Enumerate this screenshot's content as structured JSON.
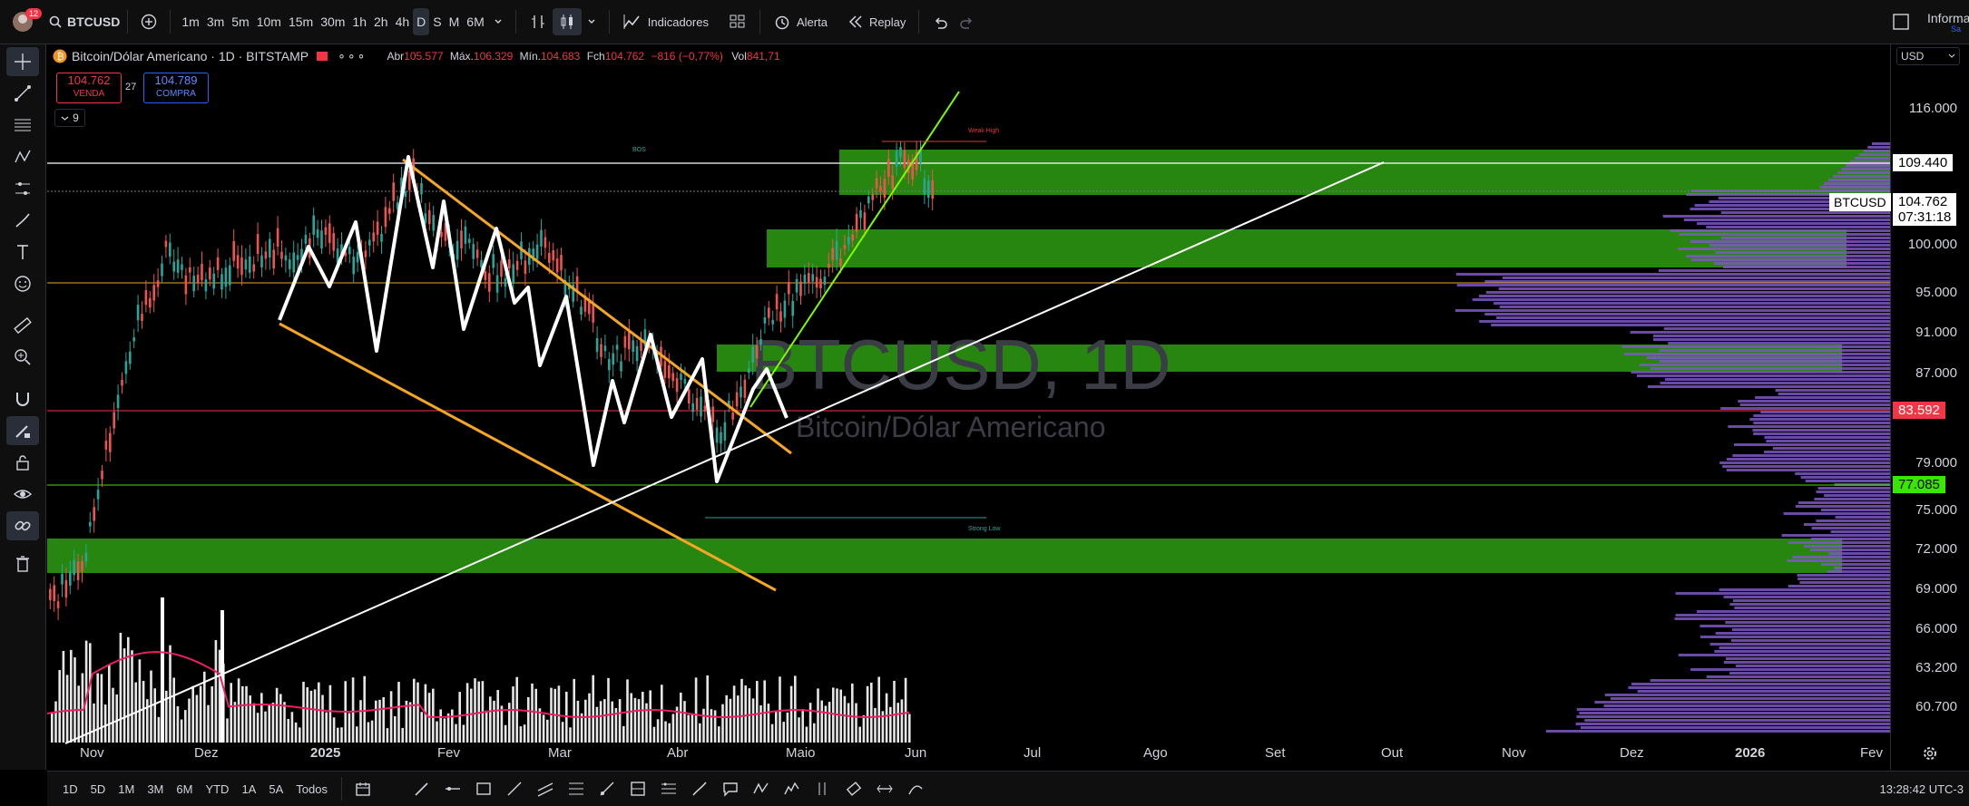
{
  "header": {
    "notifications": "12",
    "symbol": "BTCUSD",
    "intervals": [
      "1m",
      "3m",
      "5m",
      "10m",
      "15m",
      "30m",
      "1h",
      "2h",
      "4h",
      "D",
      "S",
      "M",
      "6M"
    ],
    "active_interval": "D",
    "indicators_label": "Indicadores",
    "alert_label": "Alerta",
    "replay_label": "Replay",
    "info_label": "Informa",
    "info_sub": "Sa"
  },
  "legend": {
    "title": "Bitcoin/Dólar Americano · 1D · BITSTAMP",
    "open_label": "Abr",
    "open": "105.577",
    "high_label": "Máx.",
    "high": "106.329",
    "low_label": "Mín.",
    "low": "104.683",
    "close_label": "Fch",
    "close": "104.762",
    "change": "−816 (−0,77%)",
    "vol_label": "Vol",
    "vol": "841,71",
    "indicator_count": "9"
  },
  "trade": {
    "sell_price": "104.762",
    "sell_label": "VENDA",
    "spread": "27",
    "buy_price": "104.789",
    "buy_label": "COMPRA"
  },
  "watermark": {
    "symbol": "BTCUSD, 1D",
    "name": "Bitcoin/Dólar Americano"
  },
  "annotations": {
    "weak_high": "Weak High",
    "strong_low": "Strong Low",
    "bos": "BOS"
  },
  "price_axis": {
    "currency": "USD",
    "labels": [
      "116.000",
      "100.000",
      "95.000",
      "91.000",
      "87.000",
      "79.000",
      "75.000",
      "72.000",
      "69.000",
      "66.000",
      "63.200",
      "60.700"
    ],
    "tag_white": "109.440",
    "tag_symbol": "BTCUSD",
    "tag_price": "104.762",
    "countdown": "07:31:18",
    "tag_red": "83.592",
    "tag_green": "77.085"
  },
  "time_axis": [
    "Nov",
    "Dez",
    "2025",
    "Fev",
    "Mar",
    "Abr",
    "Maio",
    "Jun",
    "Jul",
    "Ago",
    "Set",
    "Out",
    "Nov",
    "Dez",
    "2026",
    "Fev"
  ],
  "bottom": {
    "ranges": [
      "1D",
      "5D",
      "1M",
      "3M",
      "6M",
      "YTD",
      "1A",
      "5A",
      "Todos"
    ],
    "clock": "13:28:42 UTC-3"
  },
  "colors": {
    "green_zone": "#2e9e12",
    "candle_up": "#26a69a",
    "candle_down": "#ef5350",
    "profile": "#7e57c2",
    "trend_orange": "#f5a623",
    "trend_green": "#7cfc00"
  }
}
